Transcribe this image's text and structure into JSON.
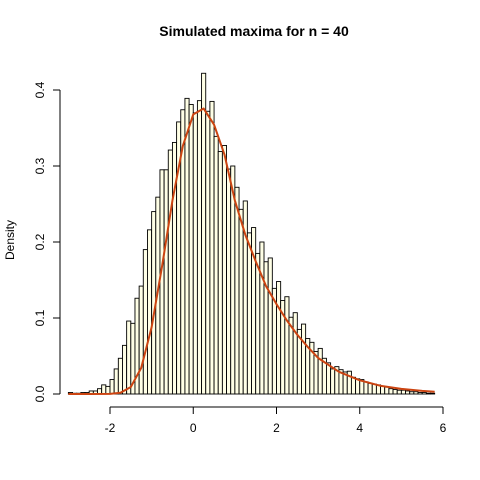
{
  "chart_data": {
    "type": "bar",
    "title": "Simulated maxima for n = 40",
    "xlabel": "",
    "ylabel": "Density",
    "xlim": [
      -3.2,
      6.0
    ],
    "ylim": [
      0,
      0.43
    ],
    "x_ticks": [
      -2,
      0,
      2,
      4,
      6
    ],
    "x_tick_labels": [
      "-2",
      "0",
      "2",
      "4",
      "6"
    ],
    "y_ticks": [
      0.0,
      0.1,
      0.2,
      0.3,
      0.4
    ],
    "y_tick_labels": [
      "0.0",
      "0.1",
      "0.2",
      "0.3",
      "0.4"
    ],
    "histogram": {
      "bin_width": 0.1,
      "bin_starts": [
        -3.0,
        -2.9,
        -2.8,
        -2.7,
        -2.6,
        -2.5,
        -2.4,
        -2.3,
        -2.2,
        -2.1,
        -2.0,
        -1.9,
        -1.8,
        -1.7,
        -1.6,
        -1.5,
        -1.4,
        -1.3,
        -1.2,
        -1.1,
        -1.0,
        -0.9,
        -0.8,
        -0.7,
        -0.6,
        -0.5,
        -0.4,
        -0.3,
        -0.2,
        -0.1,
        0.0,
        0.1,
        0.2,
        0.3,
        0.4,
        0.5,
        0.6,
        0.7,
        0.8,
        0.9,
        1.0,
        1.1,
        1.2,
        1.3,
        1.4,
        1.5,
        1.6,
        1.7,
        1.8,
        1.9,
        2.0,
        2.1,
        2.2,
        2.3,
        2.4,
        2.5,
        2.6,
        2.7,
        2.8,
        2.9,
        3.0,
        3.1,
        3.2,
        3.3,
        3.4,
        3.5,
        3.6,
        3.7,
        3.8,
        3.9,
        4.0,
        4.1,
        4.2,
        4.3,
        4.4,
        4.5,
        4.6,
        4.7,
        4.8,
        4.9,
        5.0,
        5.1,
        5.2,
        5.3,
        5.4,
        5.5,
        5.6,
        5.7
      ],
      "densities": [
        0.002,
        0.001,
        0.001,
        0.002,
        0.002,
        0.004,
        0.004,
        0.007,
        0.012,
        0.01,
        0.019,
        0.033,
        0.047,
        0.064,
        0.096,
        0.093,
        0.126,
        0.142,
        0.19,
        0.216,
        0.24,
        0.259,
        0.295,
        0.295,
        0.321,
        0.331,
        0.358,
        0.374,
        0.389,
        0.381,
        0.37,
        0.386,
        0.422,
        0.372,
        0.385,
        0.339,
        0.319,
        0.327,
        0.296,
        0.3,
        0.272,
        0.243,
        0.254,
        0.212,
        0.219,
        0.185,
        0.2,
        0.174,
        0.179,
        0.139,
        0.148,
        0.123,
        0.128,
        0.101,
        0.107,
        0.085,
        0.092,
        0.073,
        0.068,
        0.056,
        0.06,
        0.047,
        0.041,
        0.033,
        0.036,
        0.032,
        0.029,
        0.03,
        0.022,
        0.02,
        0.019,
        0.016,
        0.014,
        0.013,
        0.012,
        0.01,
        0.009,
        0.007,
        0.006,
        0.005,
        0.005,
        0.004,
        0.003,
        0.003,
        0.002,
        0.002,
        0.001,
        0.001
      ],
      "fill": "#ffffe6",
      "stroke": "#000000"
    },
    "series": [
      {
        "type": "line",
        "x": [
          -3.0,
          -2.5,
          -2.0,
          -1.75,
          -1.5,
          -1.25,
          -1.0,
          -0.75,
          -0.5,
          -0.25,
          0.0,
          0.25,
          0.5,
          0.75,
          1.0,
          1.25,
          1.5,
          1.75,
          2.0,
          2.25,
          2.5,
          2.75,
          3.0,
          3.5,
          4.0,
          4.5,
          5.0,
          5.5,
          5.8
        ],
        "values": [
          0.0,
          0.0,
          0.0002,
          0.0016,
          0.0092,
          0.0344,
          0.088,
          0.1678,
          0.2546,
          0.3264,
          0.3679,
          0.3756,
          0.3544,
          0.3151,
          0.2546,
          0.2096,
          0.1746,
          0.1418,
          0.1182,
          0.0967,
          0.0779,
          0.062,
          0.0474,
          0.0292,
          0.018,
          0.0108,
          0.0067,
          0.0041,
          0.003
        ],
        "color": "#cc4411"
      }
    ],
    "grid": false
  }
}
